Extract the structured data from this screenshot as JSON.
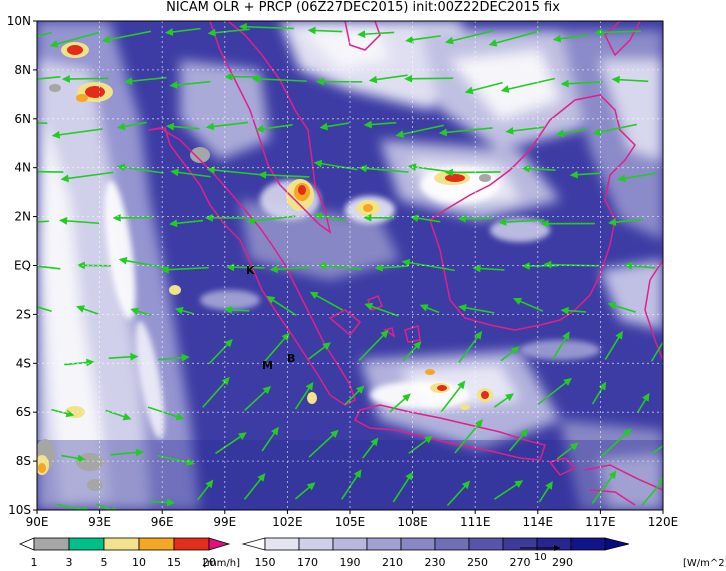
{
  "title": "NICAM OLR + PRCP (06Z27DEC2015) init:00Z22DEC2015 fix",
  "axes": {
    "lon_ticks": [
      "90E",
      "93E",
      "96E",
      "99E",
      "102E",
      "105E",
      "108E",
      "111E",
      "114E",
      "117E",
      "120E"
    ],
    "lat_ticks": [
      "10N",
      "8N",
      "6N",
      "4N",
      "2N",
      "EQ",
      "2S",
      "4S",
      "6S",
      "8S",
      "10S"
    ]
  },
  "map_labels": {
    "k": "K",
    "m": "M",
    "b": "B"
  },
  "vector_ref_label": "10",
  "legend_precip": {
    "unit": "[mm/h]",
    "labels": [
      "1",
      "3",
      "5",
      "10",
      "15",
      "20"
    ],
    "colors": [
      "#a6a6a6",
      "#00c08a",
      "#f2e28a",
      "#f5a623",
      "#e32d1a",
      "#e0107e"
    ]
  },
  "legend_olr": {
    "unit": "[W/m^2]",
    "labels": [
      "150",
      "170",
      "190",
      "210",
      "230",
      "250",
      "270",
      "290"
    ],
    "colors": [
      "#ffffff",
      "#e5e5f2",
      "#cfcfe8",
      "#b8b8de",
      "#a0a0d2",
      "#8888c6",
      "#6f6fb8",
      "#5555aa",
      "#3b3b9c",
      "#262690",
      "#14148a",
      "#0a0a80"
    ]
  },
  "colors": {
    "coast": "#e0208a",
    "wind": "#22cc22",
    "ocean_base": "#3c3ca4",
    "cloud": "#ffffff"
  }
}
